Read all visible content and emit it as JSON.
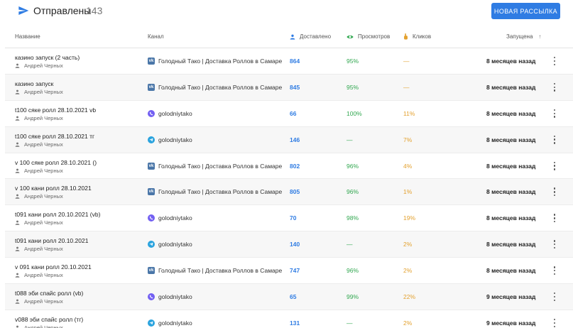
{
  "header": {
    "title": "Отправлены",
    "count": "143",
    "new_button": "НОВАЯ РАССЫЛКА"
  },
  "columns": {
    "name": "Название",
    "channel": "Канал",
    "delivered": "Доставлено",
    "views": "Просмотров",
    "clicks": "Кликов",
    "launched": "Запущена",
    "sort_arrow": "↑"
  },
  "icons": {
    "send": "send-icon",
    "delivered": "person-icon",
    "views": "eye-icon",
    "clicks": "finger-icon",
    "author": "person-icon",
    "vk": "vk-icon",
    "telegram": "telegram-icon",
    "viber": "viber-icon",
    "menu": "more-vert-icon"
  },
  "colors": {
    "accent": "#2f7ce3",
    "views": "#30a74f",
    "clicks": "#e3a12f",
    "vk": "#4a76a8",
    "telegram": "#2aa3de",
    "viber": "#7360f2"
  },
  "rows": [
    {
      "name": "казино запуск (2 часть)",
      "author": "Андрей Черных",
      "channel_type": "vk",
      "vk_mark": "vk",
      "channel": "Голодный Тако | Доставка Роллов в Самаре",
      "delivered": "864",
      "views": "95%",
      "clicks": "—",
      "launched": "8 месяцев назад"
    },
    {
      "name": "казино запуск",
      "author": "Андрей Черных",
      "channel_type": "vk",
      "vk_mark": "vk",
      "channel": "Голодный Тако | Доставка Роллов в Самаре",
      "delivered": "845",
      "views": "95%",
      "clicks": "—",
      "launched": "8 месяцев назад"
    },
    {
      "name": "t100 сяке ролл 28.10.2021 vb",
      "author": "Андрей Черных",
      "channel_type": "viber",
      "channel": "golodniytako",
      "delivered": "66",
      "views": "100%",
      "clicks": "11%",
      "launched": "8 месяцев назад"
    },
    {
      "name": "t100 сяке ролл 28.10.2021 тг",
      "author": "Андрей Черных",
      "channel_type": "telegram",
      "channel": "golodniytako",
      "delivered": "146",
      "views": "—",
      "clicks": "7%",
      "launched": "8 месяцев назад"
    },
    {
      "name": "v 100 сяке ролл 28.10.2021 ()",
      "author": "Андрей Черных",
      "channel_type": "vk",
      "vk_mark": "vk",
      "channel": "Голодный Тако | Доставка Роллов в Самаре",
      "delivered": "802",
      "views": "96%",
      "clicks": "4%",
      "launched": "8 месяцев назад"
    },
    {
      "name": "v 100 кани ролл 28.10.2021",
      "author": "Андрей Черных",
      "channel_type": "vk",
      "vk_mark": "vk",
      "channel": "Голодный Тако | Доставка Роллов в Самаре",
      "delivered": "805",
      "views": "96%",
      "clicks": "1%",
      "launched": "8 месяцев назад"
    },
    {
      "name": "t091 кани ролл 20.10.2021 (vb)",
      "author": "Андрей Черных",
      "channel_type": "viber",
      "channel": "golodniytako",
      "delivered": "70",
      "views": "98%",
      "clicks": "19%",
      "launched": "8 месяцев назад"
    },
    {
      "name": "t091 кани ролл 20.10.2021",
      "author": "Андрей Черных",
      "channel_type": "telegram",
      "channel": "golodniytako",
      "delivered": "140",
      "views": "—",
      "clicks": "2%",
      "launched": "8 месяцев назад"
    },
    {
      "name": "v 091 кани ролл 20.10.2021",
      "author": "Андрей Черных",
      "channel_type": "vk",
      "vk_mark": "vk",
      "channel": "Голодный Тако | Доставка Роллов в Самаре",
      "delivered": "747",
      "views": "96%",
      "clicks": "2%",
      "launched": "8 месяцев назад"
    },
    {
      "name": "t088 эби спайс ролл (vb)",
      "author": "Андрей Черных",
      "channel_type": "viber",
      "channel": "golodniytako",
      "delivered": "65",
      "views": "99%",
      "clicks": "22%",
      "launched": "9 месяцев назад"
    },
    {
      "name": "v088 эби спайс ролл (тг)",
      "author": "Андрей Черных",
      "channel_type": "telegram",
      "channel": "golodniytako",
      "delivered": "131",
      "views": "—",
      "clicks": "2%",
      "launched": "9 месяцев назад"
    }
  ]
}
